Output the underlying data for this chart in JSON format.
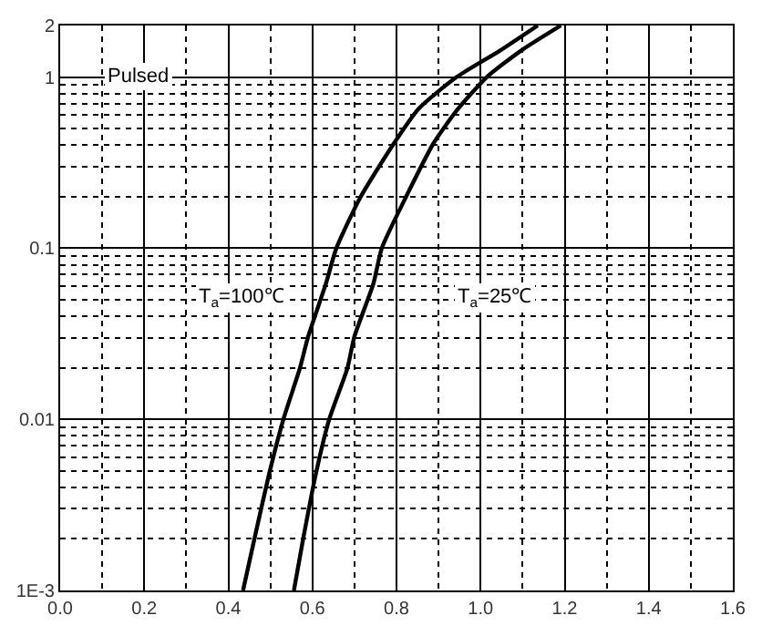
{
  "chart_data": {
    "type": "line",
    "log": "y",
    "grid": true,
    "marker": "none",
    "line_style": "solid",
    "xlim": [
      0,
      1.6
    ],
    "ylim": [
      0.001,
      2
    ],
    "xticks": [
      {
        "value": 0,
        "label": "0.0"
      },
      0.2,
      0.4,
      0.6,
      0.8,
      {
        "value": 1,
        "label": "1.0"
      },
      1.2,
      1.4,
      1.6
    ],
    "yticks": [
      {
        "value": 0.001,
        "label": "1E-3"
      },
      0.01,
      0.1,
      1,
      2
    ],
    "series": [
      {
        "color": "#000000",
        "x": [
          0.435,
          0.462,
          0.498,
          0.531,
          0.57,
          0.59,
          0.632,
          0.657,
          0.715,
          0.794,
          0.852,
          0.943,
          1.047,
          1.136
        ],
        "values": [
          0.001,
          0.002,
          0.0049,
          0.01,
          0.0198,
          0.0305,
          0.062,
          0.1,
          0.2,
          0.41,
          0.65,
          1,
          1.43,
          2
        ]
      },
      {
        "color": "#000000",
        "x": [
          0.556,
          0.578,
          0.609,
          0.64,
          0.683,
          0.7,
          0.745,
          0.765,
          0.823,
          0.888,
          0.946,
          1.015,
          1.097,
          1.191
        ],
        "values": [
          0.001,
          0.002,
          0.0049,
          0.01,
          0.0198,
          0.0305,
          0.062,
          0.1,
          0.2,
          0.41,
          0.65,
          1,
          1.43,
          2
        ]
      }
    ],
    "annotations": [
      "Pulsed",
      "T$_{a}$=100℃",
      "T$_{a}$=25℃"
    ]
  }
}
